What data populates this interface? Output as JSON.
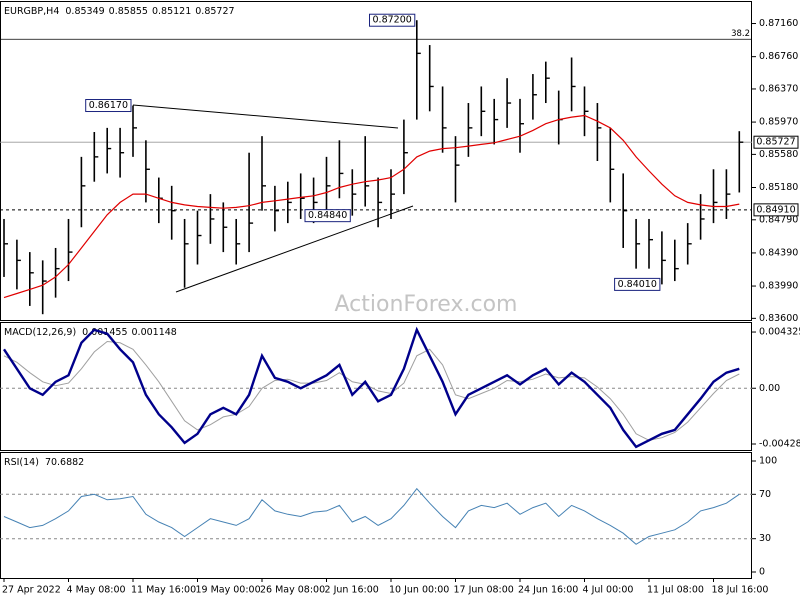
{
  "chart_data": [
    {
      "type": "ohlc",
      "title": "EURGBP,H4",
      "header_values": [
        0.85349,
        0.85855,
        0.85121,
        0.85727
      ],
      "ylim": [
        0.8358,
        0.8742
      ],
      "yticks": [
        {
          "value": 0.8716,
          "label": "0.87160"
        },
        {
          "value": 0.8676,
          "label": "0.86760"
        },
        {
          "value": 0.8637,
          "label": "0.86370"
        },
        {
          "value": 0.8597,
          "label": "0.85970"
        },
        {
          "value": 0.8558,
          "label": "0.85580"
        },
        {
          "value": 0.8518,
          "label": "0.85180"
        },
        {
          "value": 0.8479,
          "label": "0.84790"
        },
        {
          "value": 0.8439,
          "label": "0.84390"
        },
        {
          "value": 0.8399,
          "label": "0.83990"
        },
        {
          "value": 0.836,
          "label": "0.83600"
        }
      ],
      "xticks": [
        {
          "value": 0,
          "label": "27 Apr 2022"
        },
        {
          "value": 5,
          "label": "4 May 08:00"
        },
        {
          "value": 10,
          "label": "11 May 16:00"
        },
        {
          "value": 15,
          "label": "19 May 00:00"
        },
        {
          "value": 20,
          "label": "26 May 08:00"
        },
        {
          "value": 25,
          "label": "2 Jun 16:00"
        },
        {
          "value": 30,
          "label": "10 Jun 00:00"
        },
        {
          "value": 35,
          "label": "17 Jun 08:00"
        },
        {
          "value": 40,
          "label": "24 Jun 16:00"
        },
        {
          "value": 45,
          "label": "4 Jul 00:00"
        },
        {
          "value": 50,
          "label": "11 Jul 08:00"
        },
        {
          "value": 55,
          "label": "18 Jul 16:00"
        }
      ],
      "color": "#000000",
      "high": [
        0.848,
        0.8455,
        0.844,
        0.843,
        0.8445,
        0.848,
        0.8555,
        0.8585,
        0.859,
        0.859,
        0.8617,
        0.8575,
        0.853,
        0.852,
        0.848,
        0.849,
        0.851,
        0.85,
        0.848,
        0.856,
        0.858,
        0.852,
        0.8525,
        0.8535,
        0.853,
        0.8555,
        0.8575,
        0.854,
        0.858,
        0.853,
        0.854,
        0.86,
        0.872,
        0.869,
        0.864,
        0.858,
        0.862,
        0.864,
        0.8625,
        0.865,
        0.8625,
        0.8655,
        0.867,
        0.8635,
        0.8675,
        0.864,
        0.862,
        0.859,
        0.8535,
        0.848,
        0.848,
        0.8465,
        0.8455,
        0.8475,
        0.851,
        0.854,
        0.854,
        0.8586
      ],
      "low": [
        0.841,
        0.8395,
        0.8375,
        0.8365,
        0.8385,
        0.8405,
        0.847,
        0.8525,
        0.8535,
        0.853,
        0.8555,
        0.85,
        0.8475,
        0.8455,
        0.8397,
        0.8425,
        0.845,
        0.844,
        0.8425,
        0.844,
        0.849,
        0.8465,
        0.8475,
        0.848,
        0.8475,
        0.849,
        0.8505,
        0.8484,
        0.8495,
        0.847,
        0.848,
        0.851,
        0.86,
        0.861,
        0.856,
        0.85,
        0.8555,
        0.858,
        0.857,
        0.859,
        0.856,
        0.86,
        0.862,
        0.857,
        0.861,
        0.858,
        0.855,
        0.85,
        0.8445,
        0.842,
        0.842,
        0.8401,
        0.8405,
        0.8425,
        0.8455,
        0.8475,
        0.848,
        0.8512
      ],
      "close": [
        0.845,
        0.843,
        0.8415,
        0.8405,
        0.842,
        0.844,
        0.852,
        0.8555,
        0.8565,
        0.856,
        0.859,
        0.854,
        0.8505,
        0.849,
        0.845,
        0.846,
        0.848,
        0.847,
        0.845,
        0.8475,
        0.852,
        0.849,
        0.85,
        0.8505,
        0.85,
        0.852,
        0.8535,
        0.851,
        0.852,
        0.85,
        0.851,
        0.856,
        0.868,
        0.864,
        0.859,
        0.8545,
        0.859,
        0.861,
        0.86,
        0.862,
        0.8595,
        0.863,
        0.865,
        0.86,
        0.864,
        0.861,
        0.859,
        0.854,
        0.849,
        0.845,
        0.8455,
        0.843,
        0.842,
        0.845,
        0.848,
        0.85,
        0.851,
        0.85727
      ],
      "ma": {
        "color": "#e00000",
        "values": [
          0.8385,
          0.839,
          0.8395,
          0.84,
          0.841,
          0.8425,
          0.8445,
          0.8465,
          0.8485,
          0.85,
          0.851,
          0.851,
          0.8505,
          0.85,
          0.8497,
          0.8495,
          0.8494,
          0.8493,
          0.8494,
          0.8496,
          0.85,
          0.8502,
          0.8504,
          0.8506,
          0.8508,
          0.8512,
          0.8518,
          0.8522,
          0.8525,
          0.8527,
          0.853,
          0.854,
          0.8555,
          0.8562,
          0.8565,
          0.8566,
          0.8568,
          0.857,
          0.8572,
          0.8576,
          0.858,
          0.8587,
          0.8595,
          0.86,
          0.8603,
          0.8605,
          0.8598,
          0.859,
          0.8575,
          0.8555,
          0.8538,
          0.8522,
          0.8508,
          0.85,
          0.8497,
          0.8495,
          0.8495,
          0.8498
        ]
      },
      "annotations": [
        {
          "value": 0.872,
          "label": "0.87200"
        },
        {
          "value": 0.8617,
          "label": "0.86170"
        },
        {
          "value": 0.8484,
          "label": "0.84840"
        },
        {
          "value": 0.8401,
          "label": "0.84010"
        }
      ],
      "levels": [
        {
          "value": 0.85727,
          "label": "0.85727",
          "style": "solid"
        },
        {
          "value": 0.8491,
          "label": "0.84910",
          "style": "dashed"
        }
      ],
      "fib_level": {
        "value": 0.8697,
        "label": "38.2"
      },
      "watermark": "ActionForex.com"
    },
    {
      "type": "line",
      "title": "MACD(12,26,9)",
      "header_values": [
        0.001455,
        0.001148
      ],
      "ylim": [
        -0.00475,
        0.00502
      ],
      "yticks": [
        0.004325,
        {
          "value": 0,
          "label": "0.00"
        },
        -0.004288
      ],
      "dashed_at": [
        0
      ],
      "lines": [
        {
          "color": "#00008b",
          "values": [
            0.003,
            0.0015,
            0.0,
            -0.0005,
            0.0005,
            0.001,
            0.0035,
            0.0045,
            0.0042,
            0.003,
            0.002,
            -0.0005,
            -0.002,
            -0.003,
            -0.0042,
            -0.0035,
            -0.002,
            -0.0015,
            -0.002,
            -0.0005,
            0.0025,
            0.0008,
            0.0005,
            0.0,
            0.0005,
            0.001,
            0.0018,
            -0.0005,
            0.0005,
            -0.001,
            -0.0005,
            0.0015,
            0.0045,
            0.0025,
            0.0005,
            -0.002,
            -0.0005,
            0.0,
            0.0005,
            0.001,
            0.0003,
            0.001,
            0.0015,
            0.0003,
            0.0012,
            0.0005,
            -0.0005,
            -0.0015,
            -0.0032,
            -0.0045,
            -0.004,
            -0.0035,
            -0.0032,
            -0.002,
            -0.0008,
            0.0005,
            0.0012,
            0.0015
          ]
        },
        {
          "color": "#a0a0a0",
          "values": [
            0.0025,
            0.002,
            0.0012,
            0.0005,
            0.0002,
            0.0004,
            0.0015,
            0.0028,
            0.0036,
            0.0035,
            0.003,
            0.0018,
            0.0005,
            -0.001,
            -0.0025,
            -0.0032,
            -0.0028,
            -0.0022,
            -0.002,
            -0.0014,
            0.0,
            0.0006,
            0.0007,
            0.0004,
            0.0004,
            0.0006,
            0.0012,
            0.0005,
            0.0003,
            -0.0002,
            -0.0004,
            0.0004,
            0.0025,
            0.003,
            0.0018,
            -0.0005,
            -0.0008,
            -0.0004,
            0.0,
            0.0006,
            0.0005,
            0.0007,
            0.0011,
            0.0008,
            0.0009,
            0.0008,
            0.0001,
            -0.0008,
            -0.002,
            -0.0035,
            -0.004,
            -0.0038,
            -0.0034,
            -0.0026,
            -0.0015,
            -0.0004,
            0.0006,
            0.0011
          ]
        }
      ]
    },
    {
      "type": "line",
      "title": "RSI(14)",
      "header_values": [
        70.6882
      ],
      "ylim": [
        -5.4,
        107.2
      ],
      "yticks": [
        100,
        70,
        30,
        0
      ],
      "dashed_at": [
        70,
        30
      ],
      "lines": [
        {
          "color": "#4682b4",
          "values": [
            50,
            45,
            40,
            42,
            48,
            55,
            68,
            70,
            65,
            66,
            68,
            52,
            45,
            40,
            32,
            40,
            48,
            45,
            42,
            48,
            65,
            55,
            52,
            50,
            54,
            55,
            60,
            45,
            50,
            42,
            48,
            60,
            75,
            62,
            50,
            40,
            55,
            60,
            58,
            62,
            52,
            58,
            62,
            50,
            60,
            55,
            48,
            42,
            35,
            25,
            32,
            35,
            38,
            45,
            55,
            58,
            62,
            70
          ]
        }
      ]
    }
  ]
}
